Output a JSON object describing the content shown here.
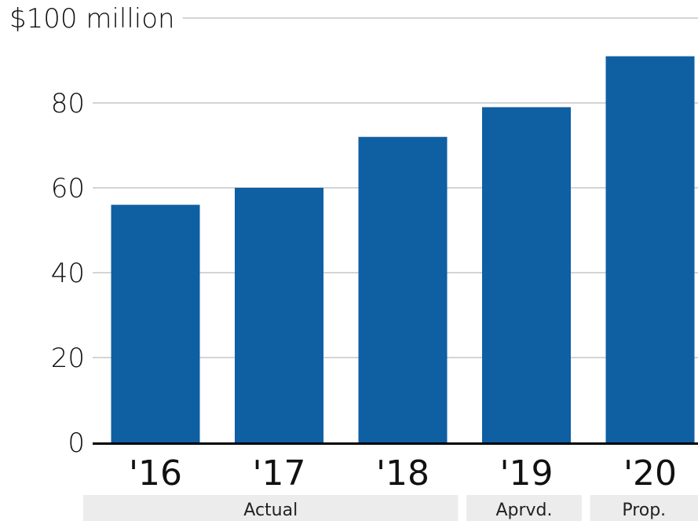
{
  "chart_data": {
    "type": "bar",
    "categories": [
      "'16",
      "'17",
      "'18",
      "'19",
      "'20"
    ],
    "values": [
      56,
      60,
      72,
      79,
      91
    ],
    "ylim": [
      0,
      100
    ],
    "yticks": [
      0,
      20,
      40,
      60,
      80,
      100
    ],
    "ytick_labels": [
      "0",
      "20",
      "40",
      "60",
      "80",
      "$100 million"
    ],
    "groups": [
      {
        "label": "Actual",
        "categories": [
          "'16",
          "'17",
          "'18"
        ]
      },
      {
        "label": "Aprvd.",
        "categories": [
          "'19"
        ]
      },
      {
        "label": "Prop.",
        "categories": [
          "'20"
        ]
      }
    ],
    "grid": true,
    "bar_color": "#0f5fa3",
    "grid_color": "#aaaaaa",
    "group_band_color": "#ececec"
  }
}
